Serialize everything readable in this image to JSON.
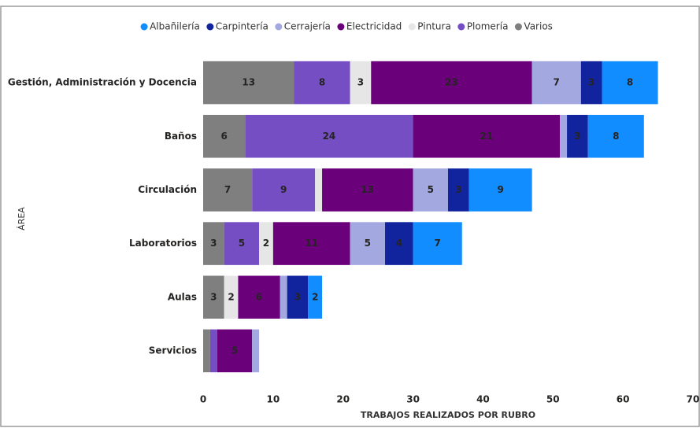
{
  "chart_data": {
    "type": "stacked_bar_horizontal",
    "x_label": "TRABAJOS REALIZADOS POR RUBRO",
    "y_label": "ÁREA",
    "categories": [
      "Gestión, Administración y Docencia",
      "Baños",
      "Circulación",
      "Laboratorios",
      "Aulas",
      "Servicios"
    ],
    "series": [
      {
        "name": "Varios",
        "color": "#7f7f7f",
        "values": [
          13,
          6,
          7,
          3,
          3,
          1
        ]
      },
      {
        "name": "Plomería",
        "color": "#744ec2",
        "values": [
          8,
          24,
          9,
          5,
          0,
          1
        ]
      },
      {
        "name": "Pintura",
        "color": "#e6e6e6",
        "values": [
          3,
          0,
          1,
          2,
          2,
          0
        ]
      },
      {
        "name": "Electricidad",
        "color": "#6b007b",
        "values": [
          23,
          21,
          13,
          11,
          6,
          5
        ]
      },
      {
        "name": "Cerrajería",
        "color": "#a3a8e0",
        "values": [
          7,
          1,
          5,
          5,
          1,
          1
        ]
      },
      {
        "name": "Carpintería",
        "color": "#12239e",
        "values": [
          3,
          3,
          3,
          4,
          3,
          0
        ]
      },
      {
        "name": "Albañilería",
        "color": "#118dff",
        "values": [
          8,
          8,
          9,
          7,
          2,
          0
        ]
      }
    ],
    "legend_order": [
      "Albañilería",
      "Carpintería",
      "Cerrajería",
      "Electricidad",
      "Pintura",
      "Plomería",
      "Varios"
    ],
    "xlim": [
      0,
      70
    ],
    "xticks": [
      0,
      10,
      20,
      30,
      40,
      50,
      60,
      70
    ],
    "grid": false,
    "legend": "top"
  }
}
